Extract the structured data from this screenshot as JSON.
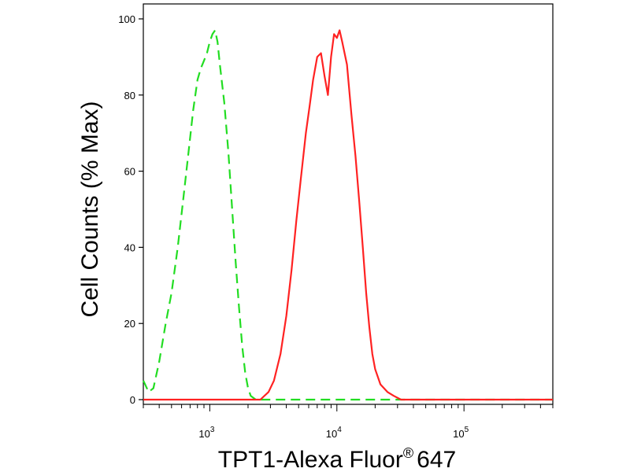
{
  "chart_data": {
    "type": "line",
    "title": "",
    "xlabel": "TPT1-Alexa Fluor",
    "xlabel_mark": "®",
    "xlabel_suffix": "647",
    "ylabel": "Cell Counts (% Max)",
    "x_scale": "log",
    "xlim": [
      300,
      500000
    ],
    "ylim": [
      0,
      100
    ],
    "grid": false,
    "legend": "none",
    "y_ticks": [
      0,
      20,
      40,
      60,
      80,
      100
    ],
    "y_tick_labels": [
      "0",
      "20",
      "40",
      "60",
      "80",
      "100"
    ],
    "x_major_ticks": [
      {
        "value": 1000,
        "base": "10",
        "exp": "3"
      },
      {
        "value": 10000,
        "base": "10",
        "exp": "4"
      },
      {
        "value": 100000,
        "base": "10",
        "exp": "5"
      }
    ],
    "series": [
      {
        "color": "#22dd22",
        "style": "dashed",
        "x": [
          300,
          330,
          360,
          400,
          450,
          500,
          560,
          620,
          680,
          740,
          800,
          850,
          900,
          950,
          1000,
          1050,
          1100,
          1150,
          1200,
          1300,
          1400,
          1500,
          1600,
          1700,
          1800,
          1900,
          2000,
          2100,
          2300,
          2600,
          3000,
          5000,
          10000,
          50000,
          500000
        ],
        "y": [
          5,
          2,
          3,
          10,
          20,
          28,
          40,
          53,
          65,
          76,
          84,
          87,
          89,
          91,
          94,
          96,
          97,
          94,
          88,
          78,
          65,
          50,
          36,
          24,
          14,
          7,
          3,
          1,
          0,
          0,
          0,
          0,
          0,
          0,
          0
        ]
      },
      {
        "color": "#ff2222",
        "style": "solid",
        "x": [
          300,
          2000,
          2500,
          2900,
          3200,
          3600,
          4000,
          4400,
          4800,
          5200,
          5700,
          6100,
          6500,
          7000,
          7500,
          8000,
          8500,
          9000,
          9500,
          10000,
          10500,
          11000,
          12000,
          13000,
          14000,
          15000,
          16000,
          17000,
          18000,
          19000,
          20000,
          22000,
          25000,
          28000,
          32000,
          36000,
          40000,
          500000
        ],
        "y": [
          0,
          0,
          0,
          2,
          5,
          12,
          22,
          34,
          47,
          58,
          70,
          77,
          84,
          90,
          91,
          85,
          80,
          90,
          96,
          95,
          97,
          94,
          88,
          75,
          64,
          52,
          40,
          28,
          19,
          12,
          8,
          4,
          2,
          1,
          0,
          0,
          0,
          0
        ]
      }
    ]
  }
}
